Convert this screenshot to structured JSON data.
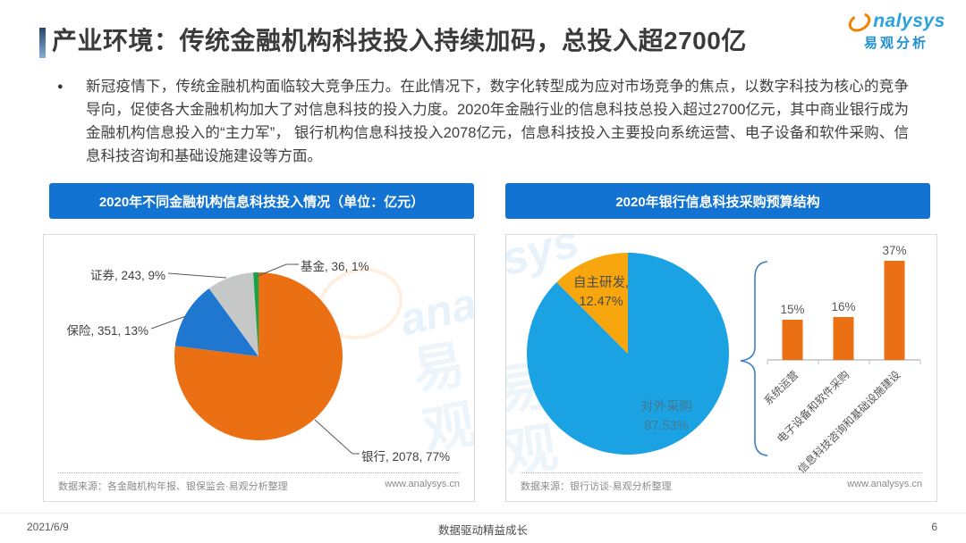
{
  "header": {
    "title": "产业环境：传统金融机构科技投入持续加码，总投入超2700亿",
    "logo": {
      "wordmark_tail": "nalysys",
      "wordmark_cn": "易观分析"
    }
  },
  "summary": {
    "bullet": "●",
    "text": "新冠疫情下，传统金融机构面临较大竞争压力。在此情况下，数字化转型成为应对市场竞争的焦点，以数字科技为核心的竞争导向，促使各大金融机构加大了对信息科技的投入力度。2020年金融行业的信息科技总投入超过2700亿元，其中商业银行成为金融机构信息投入的“主力军”， 银行机构信息科技投入2078亿元，信息科技投入主要投向系统运营、电子设备和软件采购、信息科技咨询和基础设施建设等方面。"
  },
  "watermark": {
    "latin": "analysys",
    "cn": "易观"
  },
  "chart_data": [
    {
      "type": "pie",
      "panel_title": "2020年不同金融机构信息科技投入情况（单位：亿元）",
      "unit": "亿元",
      "direction": "clockwise",
      "start_angle_deg": 0,
      "slices": [
        {
          "label": "银行",
          "value": 2078,
          "percent": 77,
          "color": "#EB7014",
          "callout": "银行, 2078, 77%"
        },
        {
          "label": "保险",
          "value": 351,
          "percent": 13,
          "color": "#2077D0",
          "callout": "保险, 351, 13%"
        },
        {
          "label": "证券",
          "value": 243,
          "percent": 9,
          "color": "#C6C8C7",
          "callout": "证券, 243, 9%"
        },
        {
          "label": "基金",
          "value": 36,
          "percent": 1,
          "color": "#16A44A",
          "callout": "基金, 36, 1%"
        }
      ],
      "source": "数据来源：各金融机构年报、银保监会·易观分析整理",
      "website": "www.analysys.cn"
    },
    {
      "type": "pie",
      "panel_title": "2020年银行信息科技采购预算结构",
      "direction": "clockwise",
      "start_angle_deg": 0,
      "slices": [
        {
          "label": "对外采购",
          "percent": 87.53,
          "color": "#1BA2E3",
          "callout_line1": "对外采购",
          "callout_line2": "87.53%"
        },
        {
          "label": "自主研发",
          "percent": 12.47,
          "color": "#F7A70D",
          "callout_line1": "自主研发,",
          "callout_line2": "12.47%"
        }
      ],
      "source": "数据来源：银行访谈·易观分析整理",
      "website": "www.analysys.cn"
    },
    {
      "type": "bar",
      "categories": [
        "系统运营",
        "电子设备和软件采购",
        "信息科技咨询和基础设施建设"
      ],
      "values": [
        15,
        16,
        37
      ],
      "value_labels": [
        "15%",
        "16%",
        "37%"
      ],
      "bar_color": "#EB7014",
      "ylim": [
        0,
        40
      ],
      "grid": false
    }
  ],
  "footer": {
    "date": "2021/6/9",
    "slogan": "数据驱动精益成长",
    "page_number": "6"
  }
}
